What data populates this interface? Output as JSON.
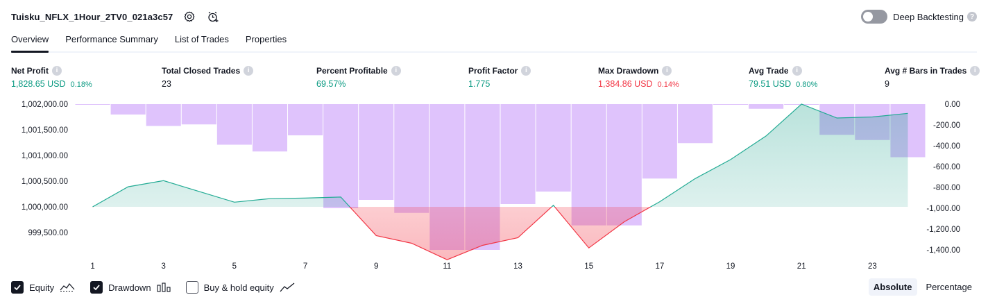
{
  "header": {
    "title": "Tuisku_NFLX_1Hour_2TV0_021a3c57",
    "deep_backtesting_label": "Deep Backtesting",
    "deep_backtesting_on": false
  },
  "tabs": [
    {
      "label": "Overview",
      "active": true
    },
    {
      "label": "Performance Summary",
      "active": false
    },
    {
      "label": "List of Trades",
      "active": false
    },
    {
      "label": "Properties",
      "active": false
    }
  ],
  "metrics": {
    "net_profit": {
      "label": "Net Profit",
      "value": "1,828.65 USD",
      "pct": "0.18%"
    },
    "total_closed_trades": {
      "label": "Total Closed Trades",
      "value": "23"
    },
    "percent_profitable": {
      "label": "Percent Profitable",
      "value": "69.57%"
    },
    "profit_factor": {
      "label": "Profit Factor",
      "value": "1.775"
    },
    "max_drawdown": {
      "label": "Max Drawdown",
      "value": "1,384.86 USD",
      "pct": "0.14%"
    },
    "avg_trade": {
      "label": "Avg Trade",
      "value": "79.51 USD",
      "pct": "0.80%"
    },
    "avg_bars": {
      "label": "Avg # Bars in Trades",
      "value": "9"
    }
  },
  "chart_data": {
    "type": "line",
    "x": [
      1,
      2,
      3,
      4,
      5,
      6,
      7,
      8,
      9,
      10,
      11,
      12,
      13,
      14,
      15,
      16,
      17,
      18,
      19,
      20,
      21,
      22,
      23,
      24
    ],
    "x_tick_labels": [
      "1",
      "3",
      "5",
      "7",
      "9",
      "11",
      "13",
      "15",
      "17",
      "19",
      "21",
      "23"
    ],
    "left_axis": {
      "ticks": [
        "1,002,000.00",
        "1,001,500.00",
        "1,001,000.00",
        "1,000,500.00",
        "1,000,000.00",
        "999,500.00"
      ],
      "ylim": [
        999300,
        1002000
      ]
    },
    "right_axis": {
      "ticks": [
        "0.00",
        "-200.00",
        "-400.00",
        "-600.00",
        "-800.00",
        "-1,000.00",
        "-1,200.00",
        "-1,400.00"
      ],
      "ylim": [
        -1450,
        0
      ]
    },
    "series": [
      {
        "name": "Equity",
        "axis": "left",
        "baseline": 1000000,
        "values": [
          1000000,
          1000390,
          1000510,
          1000300,
          1000090,
          1000160,
          1000170,
          1000190,
          999440,
          999290,
          998970,
          999250,
          999400,
          1000030,
          999200,
          999710,
          1000100,
          1000550,
          1000920,
          1001380,
          1002000,
          1001730,
          1001750,
          1001820
        ]
      },
      {
        "name": "Drawdown",
        "axis": "right",
        "type": "bar",
        "values": [
          -5,
          -100,
          -210,
          -195,
          -390,
          -455,
          -300,
          -1000,
          -920,
          -1045,
          -1400,
          -1400,
          -960,
          -840,
          -1165,
          -1165,
          -715,
          -375,
          -5,
          -45,
          -5,
          -295,
          -345,
          -510
        ]
      }
    ]
  },
  "legend": {
    "equity": {
      "label": "Equity",
      "checked": true
    },
    "drawdown": {
      "label": "Drawdown",
      "checked": true
    },
    "buy_hold": {
      "label": "Buy & hold equity",
      "checked": false
    }
  },
  "modes": {
    "absolute": "Absolute",
    "percentage": "Percentage"
  },
  "colors": {
    "positive": "#089981",
    "negative": "#f23645",
    "drawdown_bar": "#d9b8fb",
    "equity_line": "#22ab94"
  }
}
